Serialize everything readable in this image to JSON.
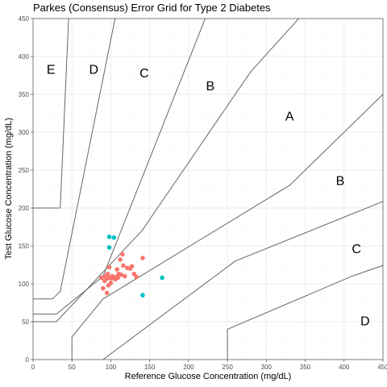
{
  "chart_data": {
    "type": "scatter",
    "title": "Parkes (Consensus) Error Grid for Type 2 Diabetes",
    "xlabel": "Reference Glucose Concentration (mg/dL)",
    "ylabel": "Test Glucose Concentration (mg/dL)",
    "xlim": [
      0,
      450
    ],
    "ylim": [
      0,
      450
    ],
    "x_ticks": [
      0,
      50,
      100,
      150,
      200,
      250,
      300,
      350,
      400,
      450
    ],
    "y_ticks": [
      0,
      50,
      100,
      150,
      200,
      250,
      300,
      350,
      400,
      450
    ],
    "grid": true,
    "legend": "none",
    "colors": {
      "series_a": "#f8766d",
      "series_b": "#00bfc4",
      "boundary": "#666666",
      "grid_major": "#ebebeb",
      "grid_minor": "#f5f5f5"
    },
    "zone_boundaries": [
      {
        "name": "A-B upper",
        "points": [
          [
            0,
            50
          ],
          [
            30,
            50
          ],
          [
            140,
            170
          ],
          [
            280,
            380
          ],
          [
            430,
            550
          ]
        ]
      },
      {
        "name": "A-B lower",
        "points": [
          [
            50,
            0
          ],
          [
            50,
            30
          ],
          [
            90,
            80
          ],
          [
            330,
            230
          ],
          [
            550,
            450
          ]
        ]
      },
      {
        "name": "B-C upper",
        "points": [
          [
            0,
            60
          ],
          [
            30,
            60
          ],
          [
            90,
            110
          ],
          [
            260,
            550
          ]
        ]
      },
      {
        "name": "B-C lower",
        "points": [
          [
            90,
            0
          ],
          [
            260,
            130
          ],
          [
            550,
            250
          ]
        ]
      },
      {
        "name": "C-D upper",
        "points": [
          [
            0,
            80
          ],
          [
            25,
            80
          ],
          [
            35,
            90
          ],
          [
            125,
            550
          ]
        ]
      },
      {
        "name": "C-D lower",
        "points": [
          [
            250,
            0
          ],
          [
            250,
            40
          ],
          [
            410,
            110
          ],
          [
            550,
            160
          ]
        ]
      },
      {
        "name": "D-E upper",
        "points": [
          [
            0,
            200
          ],
          [
            35,
            200
          ],
          [
            50,
            550
          ]
        ]
      }
    ],
    "zone_labels": [
      {
        "text": "A",
        "x": 330,
        "y": 320
      },
      {
        "text": "B",
        "x": 228,
        "y": 360
      },
      {
        "text": "B",
        "x": 395,
        "y": 235
      },
      {
        "text": "C",
        "x": 143,
        "y": 377
      },
      {
        "text": "C",
        "x": 416,
        "y": 145
      },
      {
        "text": "D",
        "x": 78,
        "y": 382
      },
      {
        "text": "D",
        "x": 427,
        "y": 50
      },
      {
        "text": "E",
        "x": 23,
        "y": 382
      }
    ],
    "series": [
      {
        "color": "#f8766d",
        "points": [
          [
            88,
            108
          ],
          [
            90,
            94
          ],
          [
            92,
            104
          ],
          [
            93,
            110
          ],
          [
            95,
            107
          ],
          [
            95,
            88
          ],
          [
            96,
            113
          ],
          [
            97,
            98
          ],
          [
            98,
            108
          ],
          [
            98,
            122
          ],
          [
            100,
            101
          ],
          [
            101,
            107
          ],
          [
            102,
            110
          ],
          [
            104,
            108
          ],
          [
            105,
            107
          ],
          [
            106,
            106
          ],
          [
            107,
            109
          ],
          [
            108,
            119
          ],
          [
            109,
            108
          ],
          [
            110,
            113
          ],
          [
            112,
            132
          ],
          [
            113,
            112
          ],
          [
            115,
            139
          ],
          [
            116,
            124
          ],
          [
            118,
            110
          ],
          [
            121,
            121
          ],
          [
            125,
            120
          ],
          [
            127,
            123
          ],
          [
            130,
            113
          ],
          [
            133,
            109
          ],
          [
            141,
            134
          ]
        ]
      },
      {
        "color": "#00bfc4",
        "points": [
          [
            98,
            162
          ],
          [
            98,
            148
          ],
          [
            104,
            161
          ],
          [
            141,
            85
          ],
          [
            166,
            108
          ]
        ]
      }
    ]
  }
}
